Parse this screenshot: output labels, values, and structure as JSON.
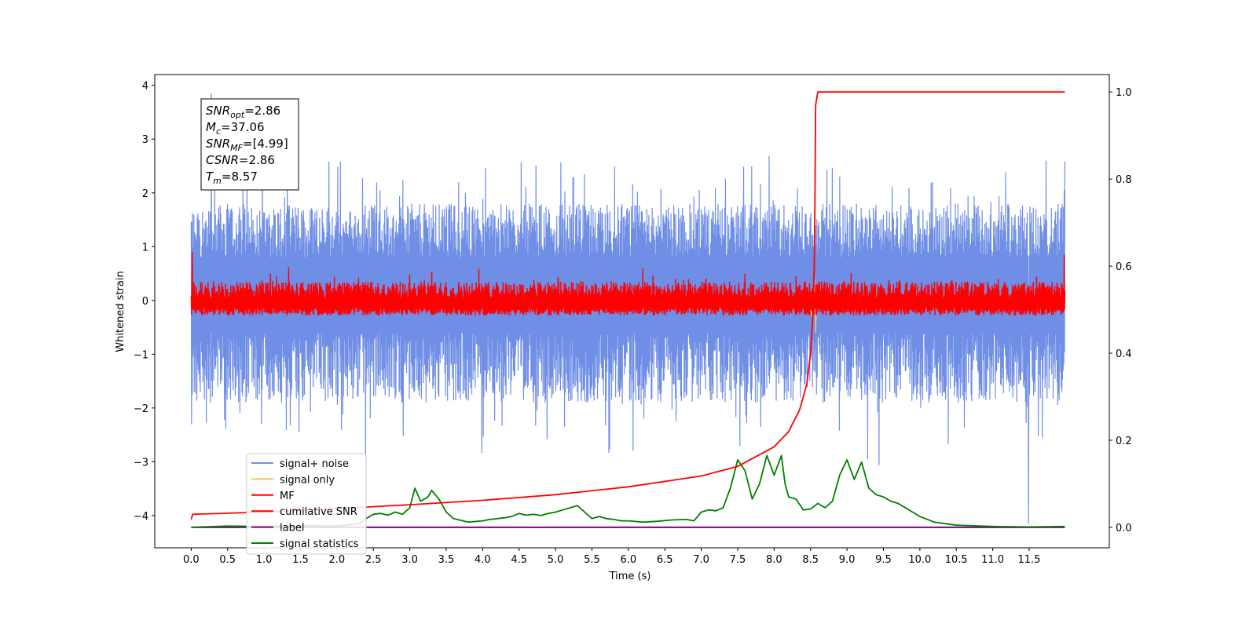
{
  "chart_data": {
    "type": "line",
    "title": "",
    "xlabel": "Time (s)",
    "ylabel": "Whitened strain",
    "y2label": "",
    "xlim": [
      -0.5,
      12.6
    ],
    "ylim": [
      -4.6,
      4.2
    ],
    "y2lim": [
      -0.047,
      1.04
    ],
    "grid": false,
    "legend_position": "lower-left",
    "x_ticks": [
      {
        "v": 0.0,
        "label": "0.0"
      },
      {
        "v": 0.5,
        "label": "0.5"
      },
      {
        "v": 1.0,
        "label": "1.0"
      },
      {
        "v": 1.5,
        "label": "1.5"
      },
      {
        "v": 2.0,
        "label": "2.0"
      },
      {
        "v": 2.5,
        "label": "2.5"
      },
      {
        "v": 3.0,
        "label": "3.0"
      },
      {
        "v": 3.5,
        "label": "3.5"
      },
      {
        "v": 4.0,
        "label": "4.0"
      },
      {
        "v": 4.5,
        "label": "4.5"
      },
      {
        "v": 5.0,
        "label": "5.0"
      },
      {
        "v": 5.5,
        "label": "5.5"
      },
      {
        "v": 6.0,
        "label": "6.0"
      },
      {
        "v": 6.5,
        "label": "6.5"
      },
      {
        "v": 7.0,
        "label": "7.0"
      },
      {
        "v": 7.5,
        "label": "7.5"
      },
      {
        "v": 8.0,
        "label": "8.0"
      },
      {
        "v": 8.5,
        "label": "8.5"
      },
      {
        "v": 9.0,
        "label": "9.0"
      },
      {
        "v": 9.5,
        "label": "9.5"
      },
      {
        "v": 10.0,
        "label": "10.0"
      },
      {
        "v": 10.5,
        "label": "10.5"
      },
      {
        "v": 11.0,
        "label": "11.0"
      },
      {
        "v": 11.5,
        "label": "11.5"
      }
    ],
    "y_ticks": [
      {
        "v": 4,
        "label": "4"
      },
      {
        "v": 3,
        "label": "3"
      },
      {
        "v": 2,
        "label": "2"
      },
      {
        "v": 1,
        "label": "1"
      },
      {
        "v": 0,
        "label": "0"
      },
      {
        "v": -1,
        "label": "−1"
      },
      {
        "v": -2,
        "label": "−2"
      },
      {
        "v": -3,
        "label": "−3"
      },
      {
        "v": -4,
        "label": "−4"
      }
    ],
    "y2_ticks": [
      {
        "v": 0.0,
        "label": "0.0"
      },
      {
        "v": 0.2,
        "label": "0.2"
      },
      {
        "v": 0.4,
        "label": "0.4"
      },
      {
        "v": 0.6,
        "label": "0.6"
      },
      {
        "v": 0.8,
        "label": "0.8"
      },
      {
        "v": 1.0,
        "label": "1.0"
      }
    ],
    "annotation": [
      {
        "sym": "SNR",
        "sub": "opt",
        "rest": "=2.86"
      },
      {
        "sym": "M",
        "sub": "c",
        "rest": "=37.06"
      },
      {
        "sym": "SNR",
        "sub": "MF",
        "rest": "=[4.99]"
      },
      {
        "sym": "CSNR",
        "sub": "",
        "rest": "=2.86"
      },
      {
        "sym": "T",
        "sub": "m",
        "rest": "=8.57"
      }
    ],
    "series": [
      {
        "name": "signal+ noise",
        "color": "#6f8ee6",
        "axis": "left",
        "description": "whitened noisy strain, dense oscillation between about -2.5 and 2.8",
        "x_range": [
          0.0,
          11.99
        ],
        "typical_band": [
          -2.0,
          1.5
        ],
        "extremes": [
          -4.15,
          3.85
        ]
      },
      {
        "name": "signal only",
        "color": "#f5c26b",
        "axis": "left",
        "x": [
          0.0,
          8.3,
          8.45,
          8.52,
          8.55,
          8.57,
          8.59,
          8.62,
          11.99
        ],
        "y": [
          0.0,
          0.0,
          0.1,
          -0.3,
          0.5,
          -0.6,
          0.2,
          0.0,
          0.0
        ]
      },
      {
        "name": "MF",
        "color": "#ff0000",
        "axis": "left",
        "description": "matched-filter output, dense red band between about -0.3 and 0.5",
        "x_range": [
          0.0,
          11.99
        ],
        "typical_band": [
          -0.3,
          0.5
        ],
        "extremes": [
          -0.3,
          0.9
        ]
      },
      {
        "name": "cumilative SNR",
        "color": "#ff0000",
        "axis": "right",
        "x": [
          0.0,
          0.02,
          1.0,
          2.0,
          3.0,
          4.0,
          5.0,
          6.0,
          7.0,
          7.5,
          8.0,
          8.2,
          8.35,
          8.45,
          8.5,
          8.53,
          8.55,
          8.56,
          8.57,
          8.6,
          11.99
        ],
        "y": [
          0.018,
          0.03,
          0.035,
          0.043,
          0.052,
          0.062,
          0.075,
          0.093,
          0.118,
          0.14,
          0.185,
          0.22,
          0.27,
          0.33,
          0.4,
          0.48,
          0.6,
          0.75,
          0.97,
          1.0,
          1.0
        ]
      },
      {
        "name": "label",
        "color": "#800080",
        "axis": "right",
        "x": [
          0.0,
          11.99
        ],
        "y": [
          0.0,
          0.0
        ]
      },
      {
        "name": "signal statistics",
        "color": "#008000",
        "axis": "right",
        "x": [
          0.0,
          0.5,
          1.0,
          1.5,
          2.0,
          2.3,
          2.4,
          2.5,
          2.6,
          2.7,
          2.8,
          2.9,
          3.0,
          3.07,
          3.15,
          3.25,
          3.3,
          3.4,
          3.5,
          3.6,
          3.8,
          4.0,
          4.1,
          4.2,
          4.3,
          4.4,
          4.5,
          4.6,
          4.7,
          4.8,
          4.9,
          5.0,
          5.1,
          5.2,
          5.3,
          5.4,
          5.5,
          5.6,
          5.7,
          5.8,
          5.9,
          6.0,
          6.2,
          6.4,
          6.6,
          6.8,
          6.9,
          7.0,
          7.1,
          7.2,
          7.3,
          7.4,
          7.5,
          7.6,
          7.7,
          7.8,
          7.9,
          8.0,
          8.1,
          8.15,
          8.2,
          8.3,
          8.4,
          8.5,
          8.6,
          8.7,
          8.8,
          8.9,
          9.0,
          9.1,
          9.2,
          9.25,
          9.3,
          9.4,
          9.5,
          9.6,
          9.7,
          9.9,
          10.0,
          10.2,
          10.5,
          11.0,
          11.5,
          11.99
        ],
        "y": [
          0.0,
          0.003,
          0.002,
          0.004,
          0.003,
          0.008,
          0.02,
          0.03,
          0.032,
          0.028,
          0.035,
          0.03,
          0.045,
          0.09,
          0.06,
          0.07,
          0.085,
          0.065,
          0.035,
          0.02,
          0.012,
          0.015,
          0.018,
          0.02,
          0.022,
          0.025,
          0.032,
          0.028,
          0.03,
          0.027,
          0.032,
          0.035,
          0.04,
          0.045,
          0.05,
          0.035,
          0.02,
          0.025,
          0.02,
          0.018,
          0.015,
          0.015,
          0.012,
          0.014,
          0.017,
          0.018,
          0.015,
          0.035,
          0.04,
          0.038,
          0.045,
          0.09,
          0.155,
          0.13,
          0.065,
          0.1,
          0.165,
          0.12,
          0.165,
          0.1,
          0.07,
          0.065,
          0.04,
          0.042,
          0.055,
          0.045,
          0.06,
          0.12,
          0.155,
          0.11,
          0.15,
          0.12,
          0.09,
          0.075,
          0.07,
          0.06,
          0.055,
          0.035,
          0.025,
          0.012,
          0.005,
          0.002,
          0.001,
          0.002
        ]
      }
    ]
  }
}
